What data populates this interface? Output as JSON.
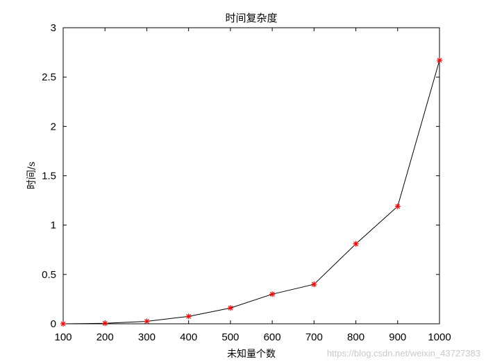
{
  "chart_data": {
    "type": "line",
    "title": "时间复杂度",
    "xlabel": "未知量个数",
    "ylabel": "时间/s",
    "x": [
      100,
      200,
      300,
      400,
      500,
      600,
      700,
      800,
      900,
      1000
    ],
    "series": [
      {
        "values": [
          0.0,
          0.005,
          0.025,
          0.075,
          0.16,
          0.3,
          0.4,
          0.81,
          1.19,
          2.67
        ],
        "line_color": "#000000",
        "marker": "*",
        "marker_color": "#ff0000"
      }
    ],
    "xlim": [
      100,
      1000
    ],
    "ylim": [
      0,
      3
    ],
    "xticks": [
      "100",
      "200",
      "300",
      "400",
      "500",
      "600",
      "700",
      "800",
      "900",
      "1000"
    ],
    "yticks": [
      "0",
      "0.5",
      "1",
      "1.5",
      "2",
      "2.5",
      "3"
    ],
    "grid": false
  },
  "watermark": "https://blog.csdn.net/weixin_43727383"
}
